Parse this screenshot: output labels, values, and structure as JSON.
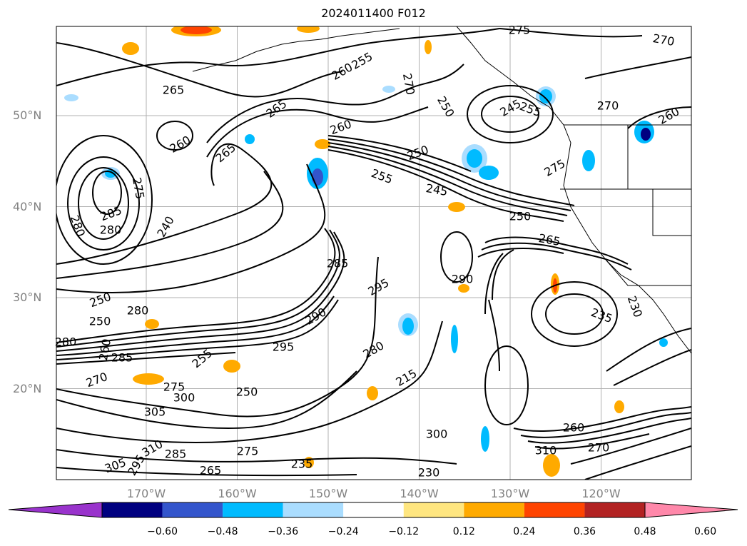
{
  "title": "2024011400 F012",
  "map": {
    "lat_labels": [
      {
        "label": "50°N",
        "lat": 50
      },
      {
        "label": "40°N",
        "lat": 40
      },
      {
        "label": "30°N",
        "lat": 30
      },
      {
        "label": "20°N",
        "lat": 20
      }
    ],
    "lon_labels": [
      {
        "label": "170°W",
        "lon": -170
      },
      {
        "label": "160°W",
        "lon": -160
      },
      {
        "label": "150°W",
        "lon": -150
      },
      {
        "label": "140°W",
        "lon": -140
      },
      {
        "label": "130°W",
        "lon": -130
      },
      {
        "label": "120°W",
        "lon": -120
      }
    ],
    "contour_labels": [
      "265",
      "255",
      "260",
      "270",
      "275",
      "270",
      "265",
      "260",
      "265",
      "260",
      "255",
      "250",
      "245",
      "250",
      "265",
      "270",
      "260",
      "250",
      "245",
      "255",
      "275",
      "280",
      "285",
      "280",
      "275",
      "240",
      "250",
      "280",
      "285",
      "295",
      "290",
      "235",
      "230",
      "250",
      "260",
      "280",
      "285",
      "270",
      "275",
      "300",
      "305",
      "310",
      "305",
      "295",
      "285",
      "255",
      "250",
      "275",
      "265",
      "235",
      "230",
      "215",
      "280",
      "290",
      "295",
      "300",
      "310",
      "260",
      "270"
    ],
    "contour_units": "K"
  },
  "colorbar": {
    "ticks": [
      "−0.60",
      "−0.48",
      "−0.36",
      "−0.24",
      "−0.12",
      "0.12",
      "0.24",
      "0.36",
      "0.48",
      "0.60"
    ],
    "colors": [
      "#9933cc",
      "#000080",
      "#3355cc",
      "#00bbff",
      "#aaddff",
      "#ffffff",
      "#ffe680",
      "#ffaa00",
      "#ff4400",
      "#b22222",
      "#ff88aa"
    ]
  }
}
